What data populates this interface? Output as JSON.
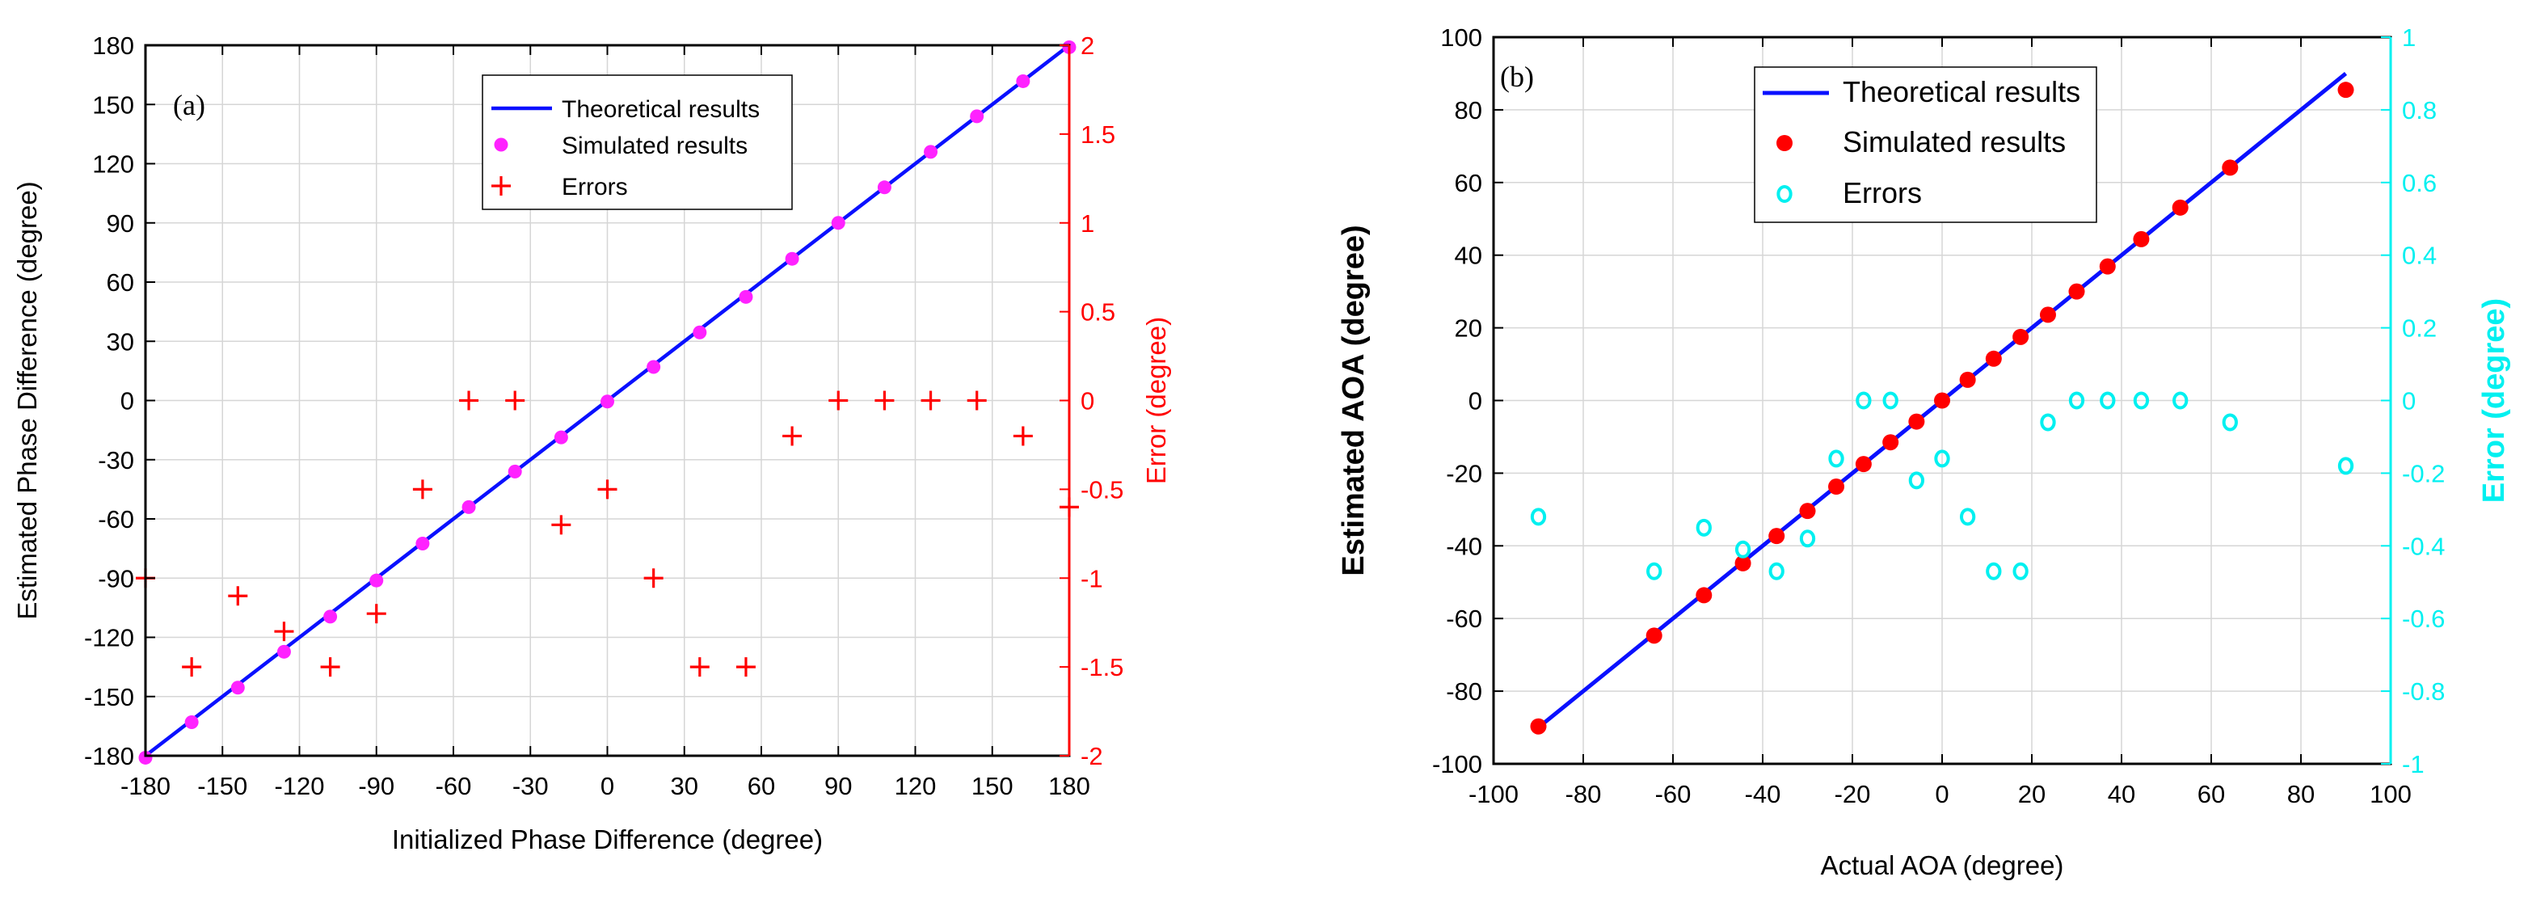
{
  "colors": {
    "theory": "#0a10ff",
    "sim_a": "#ff22ff",
    "error_a": "#ff0000",
    "sim_b": "#ff0000",
    "error_b": "#00f0f0",
    "axis": "#000000",
    "grid": "#d6d6d6"
  },
  "chart_data": [
    {
      "id": "a",
      "panel_label": "(a)",
      "type": "scatter",
      "xlabel": "Initialized Phase Difference (degree)",
      "ylabel": "Estimated Phase Difference (degree)",
      "y2label": "Error (degree)",
      "xlim": [
        -180,
        180
      ],
      "ylim": [
        -180,
        180
      ],
      "y2lim": [
        -2,
        2
      ],
      "xticks": [
        -180,
        -150,
        -120,
        -90,
        -60,
        -30,
        0,
        30,
        60,
        90,
        120,
        150,
        180
      ],
      "yticks": [
        -180,
        -150,
        -120,
        -90,
        -60,
        -30,
        0,
        30,
        60,
        90,
        120,
        150,
        180
      ],
      "y2ticks": [
        -2,
        -1.5,
        -1,
        -0.5,
        0,
        0.5,
        1,
        1.5,
        2
      ],
      "grid": true,
      "legend_position": "top-center",
      "series": [
        {
          "name": "Theoretical results",
          "kind": "line",
          "color_key": "theory",
          "axis": "left",
          "x": [
            -180,
            180
          ],
          "y": [
            -180,
            180
          ]
        },
        {
          "name": "Simulated results",
          "kind": "dot",
          "color_key": "sim_a",
          "axis": "left",
          "x": [
            -180,
            -162,
            -144,
            -126,
            -108,
            -90,
            -72,
            -54,
            -36,
            -18,
            0,
            18,
            36,
            54,
            72,
            90,
            108,
            126,
            144,
            162,
            180
          ],
          "y": [
            -181,
            -163,
            -145.5,
            -127.3,
            -109.5,
            -91.2,
            -72.5,
            -54,
            -36,
            -18.7,
            -0.5,
            17,
            34.5,
            52.5,
            71.8,
            90,
            108,
            126,
            144,
            161.8,
            179
          ]
        },
        {
          "name": "Errors",
          "kind": "plus",
          "color_key": "error_a",
          "axis": "right",
          "x": [
            -180,
            -162,
            -144,
            -126,
            -108,
            -90,
            -72,
            -54,
            -36,
            -18,
            0,
            18,
            36,
            54,
            72,
            90,
            108,
            126,
            144,
            162,
            180
          ],
          "y": [
            -1.0,
            -1.5,
            -1.1,
            -1.3,
            -1.5,
            -1.2,
            -0.5,
            0,
            0,
            -0.7,
            -0.5,
            -1.0,
            -1.5,
            -1.5,
            -0.2,
            0,
            0,
            0,
            0,
            -0.2,
            -0.6
          ]
        }
      ]
    },
    {
      "id": "b",
      "panel_label": "(b)",
      "type": "scatter",
      "xlabel": "Actual AOA (degree)",
      "ylabel": "Estimated AOA (degree)",
      "y2label": "Error (degree)",
      "xlim": [
        -100,
        100
      ],
      "ylim": [
        -100,
        100
      ],
      "y2lim": [
        -1,
        1
      ],
      "xticks": [
        -100,
        -80,
        -60,
        -40,
        -20,
        0,
        20,
        40,
        60,
        80,
        100
      ],
      "yticks": [
        -100,
        -80,
        -60,
        -40,
        -20,
        0,
        20,
        40,
        60,
        80,
        100
      ],
      "y2ticks": [
        -1,
        -0.8,
        -0.6,
        -0.4,
        -0.2,
        0,
        0.2,
        0.4,
        0.6,
        0.8,
        1
      ],
      "grid": true,
      "legend_position": "top-left",
      "series": [
        {
          "name": "Theoretical results",
          "kind": "line",
          "color_key": "theory",
          "axis": "left",
          "x": [
            -90,
            90
          ],
          "y": [
            -90,
            90
          ]
        },
        {
          "name": "Simulated results",
          "kind": "dot",
          "color_key": "sim_b",
          "axis": "left",
          "x": [
            -90,
            -64.2,
            -53.1,
            -44.4,
            -36.9,
            -30,
            -23.6,
            -17.5,
            -11.5,
            -5.7,
            0,
            5.7,
            11.5,
            17.5,
            23.6,
            30,
            36.9,
            44.4,
            53.1,
            64.2,
            90
          ],
          "y": [
            -89.7,
            -64.7,
            -53.6,
            -44.8,
            -37.3,
            -30.4,
            -23.7,
            -17.5,
            -11.5,
            -5.8,
            0,
            5.7,
            11.5,
            17.5,
            23.6,
            30,
            36.9,
            44.4,
            53.1,
            64.1,
            85.5
          ]
        },
        {
          "name": "Errors",
          "kind": "ring",
          "color_key": "error_b",
          "axis": "right",
          "x": [
            -90,
            -64.2,
            -53.1,
            -44.4,
            -36.9,
            -30,
            -23.6,
            -17.5,
            -11.5,
            -5.7,
            0,
            5.7,
            11.5,
            17.5,
            23.6,
            30,
            36.9,
            44.4,
            53.1,
            64.2,
            90
          ],
          "y": [
            -0.32,
            -0.47,
            -0.35,
            -0.41,
            -0.47,
            -0.38,
            -0.16,
            0,
            0,
            -0.22,
            -0.16,
            -0.32,
            -0.47,
            -0.47,
            -0.06,
            0,
            0,
            0,
            0,
            -0.06,
            -0.18
          ]
        }
      ]
    }
  ]
}
